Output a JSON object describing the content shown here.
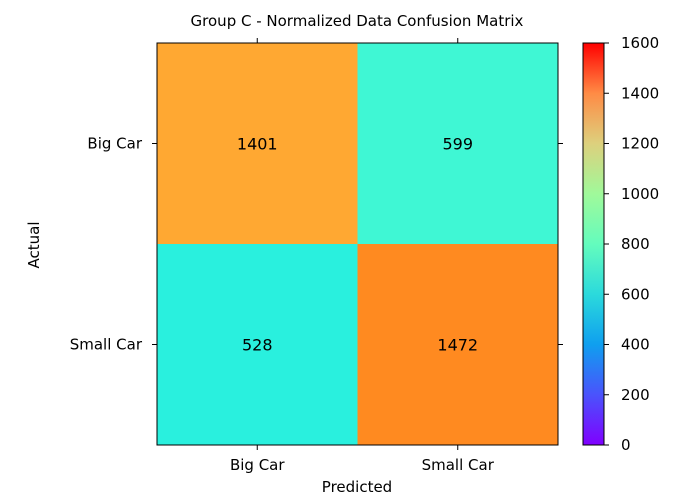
{
  "chart_data": {
    "type": "heatmap",
    "title": "Group C - Normalized Data Confusion Matrix",
    "xlabel": "Predicted",
    "ylabel": "Actual",
    "x_categories": [
      "Big Car",
      "Small Car"
    ],
    "y_categories": [
      "Big Car",
      "Small Car"
    ],
    "values": [
      [
        1401,
        599
      ],
      [
        528,
        1472
      ]
    ],
    "colormap": "rainbow",
    "colorbar": {
      "range": [
        0,
        1600
      ],
      "ticks": [
        0,
        200,
        400,
        600,
        800,
        1000,
        1200,
        1400,
        1600
      ]
    },
    "grid": false,
    "legend": "colorbar-right"
  }
}
